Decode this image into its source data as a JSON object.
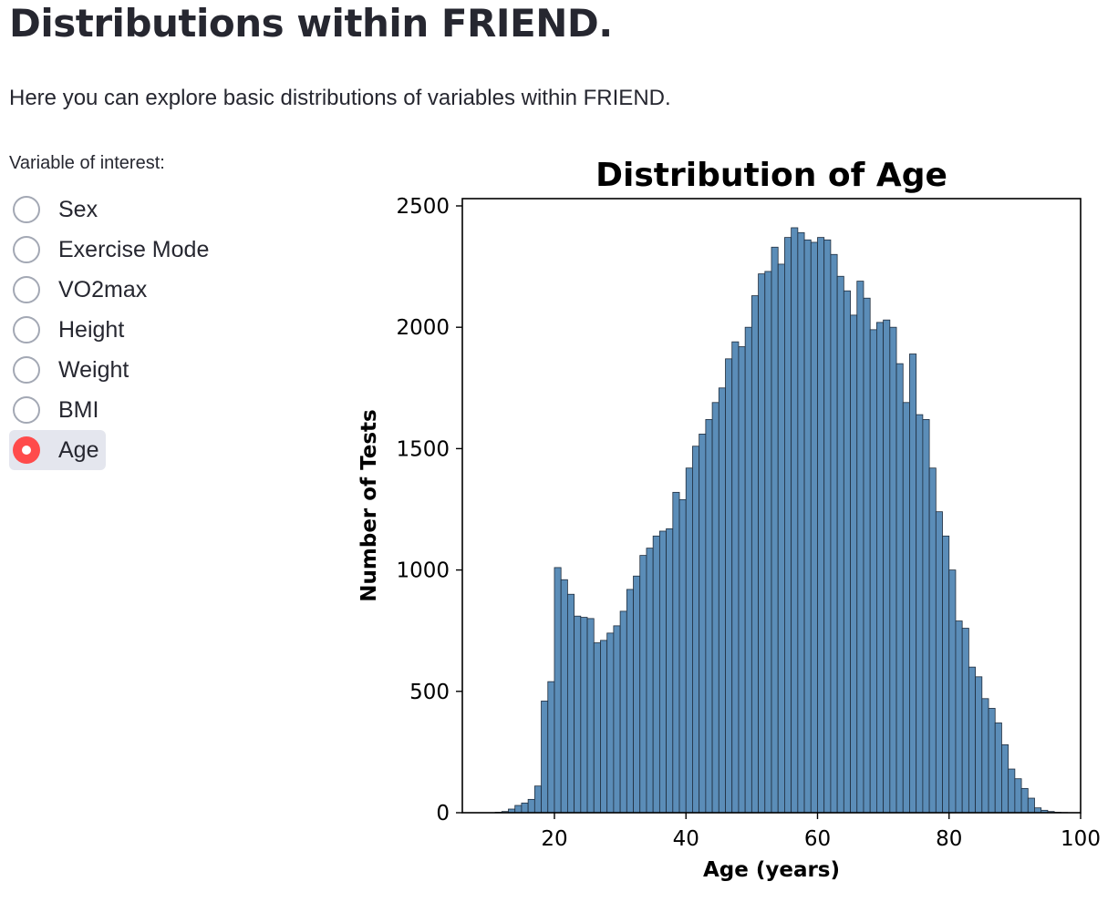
{
  "page": {
    "title": "Distributions within FRIEND.",
    "intro": "Here you can explore basic distributions of variables within FRIEND."
  },
  "radio": {
    "label": "Variable of interest:",
    "options": [
      "Sex",
      "Exercise Mode",
      "VO2max",
      "Height",
      "Weight",
      "BMI",
      "Age"
    ],
    "selected": "Age"
  },
  "colors": {
    "accent": "#ff4b4b",
    "bar_fill": "#5b8db8",
    "bar_edge": "#1f2d3d"
  },
  "chart_data": {
    "type": "bar",
    "title": "Distribution of Age",
    "xlabel": "Age (years)",
    "ylabel": "Number of Tests",
    "xlim": [
      6,
      100
    ],
    "ylim": [
      0,
      2530
    ],
    "xticks": [
      20,
      40,
      60,
      80,
      100
    ],
    "yticks": [
      0,
      500,
      1000,
      1500,
      2000,
      2500
    ],
    "grid": false,
    "bin_start": 11,
    "bin_width": 1,
    "values": [
      2,
      5,
      15,
      30,
      40,
      55,
      110,
      460,
      540,
      1010,
      960,
      900,
      810,
      805,
      800,
      700,
      710,
      740,
      770,
      830,
      920,
      975,
      1060,
      1090,
      1140,
      1160,
      1170,
      1320,
      1290,
      1420,
      1510,
      1560,
      1620,
      1690,
      1750,
      1870,
      1940,
      1920,
      2000,
      2130,
      2220,
      2230,
      2330,
      2260,
      2370,
      2410,
      2390,
      2360,
      2350,
      2370,
      2360,
      2300,
      2210,
      2150,
      2050,
      2190,
      2120,
      1990,
      2020,
      2030,
      2000,
      1850,
      1690,
      1890,
      1640,
      1620,
      1420,
      1240,
      1140,
      1000,
      790,
      760,
      600,
      560,
      470,
      430,
      370,
      280,
      180,
      140,
      100,
      60,
      20,
      10,
      5,
      2,
      1
    ]
  }
}
